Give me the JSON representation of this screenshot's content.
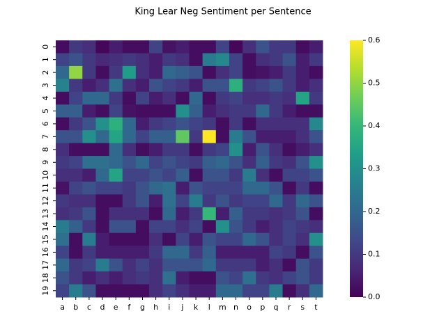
{
  "chart_data": {
    "type": "heatmap",
    "title": "King Lear Neg Sentiment per Sentence",
    "categories": [
      "a",
      "b",
      "c",
      "d",
      "e",
      "f",
      "g",
      "h",
      "i",
      "j",
      "k",
      "l",
      "m",
      "n",
      "o",
      "p",
      "q",
      "r",
      "s",
      "t"
    ],
    "y_categories": [
      "0",
      "1",
      "2",
      "3",
      "4",
      "5",
      "6",
      "7",
      "8",
      "9",
      "10",
      "11",
      "12",
      "13",
      "14",
      "15",
      "16",
      "17",
      "18",
      "19"
    ],
    "colormap": "viridis",
    "clim": [
      0,
      0.6
    ],
    "colorbar_ticks": [
      {
        "value": 0,
        "label": "0.0"
      },
      0.1,
      0.2,
      0.3,
      0.4,
      0.5,
      0.6
    ],
    "values": [
      [
        0.02,
        0.1,
        0.08,
        0.01,
        0.05,
        0.02,
        0.02,
        0.12,
        0.03,
        0.05,
        0.02,
        0.02,
        0.12,
        0.01,
        0.08,
        0.15,
        0.1,
        0.1,
        0.02,
        0.05
      ],
      [
        0.12,
        0.15,
        0.1,
        0.07,
        0.08,
        0.1,
        0.08,
        0.05,
        0.1,
        0.08,
        0.02,
        0.25,
        0.28,
        0.12,
        0.02,
        0.08,
        0.1,
        0.15,
        0.05,
        0.1
      ],
      [
        0.2,
        0.5,
        0.1,
        0.02,
        0.1,
        0.33,
        0.08,
        0.05,
        0.2,
        0.18,
        0.15,
        0.02,
        0.08,
        0.12,
        0.02,
        0.03,
        0.05,
        0.1,
        0.05,
        0.02
      ],
      [
        0.27,
        0.1,
        0.05,
        0.08,
        0.22,
        0.08,
        0.05,
        0.15,
        0.12,
        0.1,
        0.05,
        0.15,
        0.15,
        0.38,
        0.1,
        0.12,
        0.15,
        0.1,
        0.05,
        0.08
      ],
      [
        0.02,
        0.12,
        0.2,
        0.2,
        0.1,
        0.02,
        0.12,
        0.05,
        0.08,
        0.02,
        0.2,
        0.02,
        0.1,
        0.12,
        0.08,
        0.08,
        0.1,
        0.08,
        0.35,
        0.1
      ],
      [
        0.18,
        0.18,
        0.05,
        0.02,
        0.12,
        0.03,
        0.02,
        0.02,
        0.02,
        0.3,
        0.18,
        0.05,
        0.08,
        0.1,
        0.1,
        0.2,
        0.1,
        0.05,
        0.02,
        0.02
      ],
      [
        0.02,
        0.1,
        0.15,
        0.3,
        0.38,
        0.2,
        0.05,
        0.1,
        0.12,
        0.15,
        0.12,
        0.1,
        0.02,
        0.1,
        0.02,
        0.08,
        0.08,
        0.08,
        0.08,
        0.28
      ],
      [
        0.15,
        0.15,
        0.3,
        0.2,
        0.35,
        0.2,
        0.12,
        0.18,
        0.18,
        0.45,
        0.1,
        0.6,
        0.02,
        0.25,
        0.15,
        0.05,
        0.05,
        0.05,
        0.08,
        0.15
      ],
      [
        0.08,
        0.02,
        0.02,
        0.02,
        0.2,
        0.08,
        0.02,
        0.05,
        0.1,
        0.1,
        0.02,
        0.1,
        0.12,
        0.3,
        0.05,
        0.15,
        0.08,
        0.02,
        0.05,
        0.08
      ],
      [
        0.1,
        0.12,
        0.22,
        0.22,
        0.2,
        0.15,
        0.2,
        0.12,
        0.15,
        0.12,
        0.1,
        0.18,
        0.2,
        0.15,
        0.08,
        0.18,
        0.1,
        0.08,
        0.15,
        0.3
      ],
      [
        0.08,
        0.08,
        0.05,
        0.2,
        0.35,
        0.12,
        0.12,
        0.15,
        0.12,
        0.18,
        0.02,
        0.15,
        0.15,
        0.1,
        0.25,
        0.08,
        0.02,
        0.12,
        0.12,
        0.15
      ],
      [
        0.03,
        0.12,
        0.15,
        0.12,
        0.12,
        0.1,
        0.15,
        0.2,
        0.22,
        0.05,
        0.15,
        0.12,
        0.12,
        0.12,
        0.2,
        0.2,
        0.15,
        0.02,
        0.1,
        0.02
      ],
      [
        0.1,
        0.08,
        0.08,
        0.02,
        0.02,
        0.1,
        0.15,
        0.05,
        0.22,
        0.12,
        0.25,
        0.1,
        0.15,
        0.1,
        0.12,
        0.12,
        0.2,
        0.1,
        0.2,
        0.15
      ],
      [
        0.08,
        0.1,
        0.15,
        0.02,
        0.08,
        0.08,
        0.08,
        0.02,
        0.2,
        0.05,
        0.1,
        0.4,
        0.05,
        0.18,
        0.1,
        0.1,
        0.08,
        0.1,
        0.15,
        0.02
      ],
      [
        0.25,
        0.18,
        0.1,
        0.02,
        0.15,
        0.15,
        0.02,
        0.12,
        0.12,
        0.08,
        0.12,
        0.02,
        0.3,
        0.15,
        0.1,
        0.05,
        0.08,
        0.12,
        0.1,
        0.08
      ],
      [
        0.22,
        0.02,
        0.25,
        0.05,
        0.02,
        0.02,
        0.02,
        0.08,
        0.02,
        0.12,
        0.05,
        0.15,
        0.12,
        0.12,
        0.2,
        0.15,
        0.08,
        0.12,
        0.08,
        0.3
      ],
      [
        0.12,
        0.02,
        0.1,
        0.05,
        0.05,
        0.05,
        0.05,
        0.1,
        0.2,
        0.2,
        0.1,
        0.18,
        0.05,
        0.05,
        0.05,
        0.05,
        0.12,
        0.1,
        0.02,
        0.15
      ],
      [
        0.2,
        0.1,
        0.12,
        0.25,
        0.15,
        0.08,
        0.12,
        0.08,
        0.15,
        0.15,
        0.15,
        0.2,
        0.1,
        0.1,
        0.1,
        0.05,
        0.08,
        0.02,
        0.15,
        0.1
      ],
      [
        0.15,
        0.1,
        0.05,
        0.08,
        0.05,
        0.08,
        0.1,
        0.08,
        0.22,
        0.05,
        0.02,
        0.02,
        0.15,
        0.12,
        0.22,
        0.1,
        0.08,
        0.12,
        0.15,
        0.1
      ],
      [
        0.12,
        0.25,
        0.15,
        0.02,
        0.02,
        0.02,
        0.02,
        0.08,
        0.12,
        0.08,
        0.05,
        0.05,
        0.2,
        0.2,
        0.12,
        0.12,
        0.25,
        0.02,
        0.08,
        0.2
      ]
    ]
  }
}
